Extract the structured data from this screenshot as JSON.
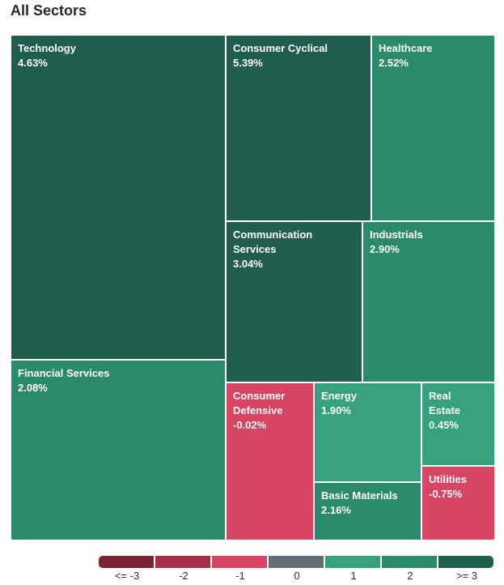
{
  "page": {
    "title": "All Sectors"
  },
  "colors": {
    "le_-3": "#7a2335",
    "-2": "#a6304a",
    "-1": "#d64563",
    "0": "#646c74",
    "1": "#36a17f",
    "2": "#2b8a6b",
    "ge_3": "#215e4d"
  },
  "chart_data": {
    "type": "treemap",
    "title": "All Sectors",
    "sectors": [
      {
        "name": "Technology",
        "change_pct": 4.63,
        "change_label": "4.63%",
        "color_bucket": "ge_3"
      },
      {
        "name": "Consumer Cyclical",
        "change_pct": 5.39,
        "change_label": "5.39%",
        "color_bucket": "ge_3"
      },
      {
        "name": "Healthcare",
        "change_pct": 2.52,
        "change_label": "2.52%",
        "color_bucket": "2"
      },
      {
        "name": "Communication\nServices",
        "change_pct": 3.04,
        "change_label": "3.04%",
        "color_bucket": "ge_3"
      },
      {
        "name": "Industrials",
        "change_pct": 2.9,
        "change_label": "2.90%",
        "color_bucket": "2"
      },
      {
        "name": "Financial Services",
        "change_pct": 2.08,
        "change_label": "2.08%",
        "color_bucket": "2"
      },
      {
        "name": "Consumer\nDefensive",
        "change_pct": -0.02,
        "change_label": "-0.02%",
        "color_bucket": "-1"
      },
      {
        "name": "Energy",
        "change_pct": 1.9,
        "change_label": "1.90%",
        "color_bucket": "1"
      },
      {
        "name": "Real\nEstate",
        "change_pct": 0.45,
        "change_label": "0.45%",
        "color_bucket": "1"
      },
      {
        "name": "Basic Materials",
        "change_pct": 2.16,
        "change_label": "2.16%",
        "color_bucket": "2"
      },
      {
        "name": "Utilities",
        "change_pct": -0.75,
        "change_label": "-0.75%",
        "color_bucket": "-1"
      }
    ],
    "legend": [
      {
        "label": "<= -3",
        "color_bucket": "le_-3"
      },
      {
        "label": "-2",
        "color_bucket": "-2"
      },
      {
        "label": "-1",
        "color_bucket": "-1"
      },
      {
        "label": "0",
        "color_bucket": "0"
      },
      {
        "label": "1",
        "color_bucket": "1"
      },
      {
        "label": "2",
        "color_bucket": "2"
      },
      {
        "label": ">= 3",
        "color_bucket": "ge_3"
      }
    ]
  }
}
